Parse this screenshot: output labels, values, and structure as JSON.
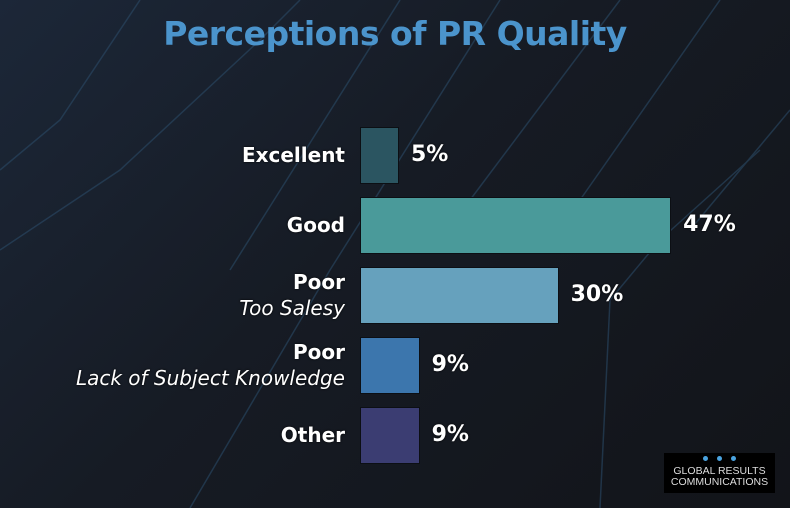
{
  "chart_data": {
    "type": "bar",
    "orientation": "horizontal",
    "title": "Perceptions of PR Quality",
    "categories": [
      {
        "label": "Excellent",
        "sublabel": ""
      },
      {
        "label": "Good",
        "sublabel": ""
      },
      {
        "label": "Poor",
        "sublabel": "Too Salesy"
      },
      {
        "label": "Poor",
        "sublabel": "Lack of Subject Knowledge"
      },
      {
        "label": "Other",
        "sublabel": ""
      }
    ],
    "values": [
      5,
      47,
      30,
      9,
      9
    ],
    "value_labels": [
      "5%",
      "47%",
      "30%",
      "9%",
      "9%"
    ],
    "colors": [
      "#2b5561",
      "#4a9a9a",
      "#66a1bd",
      "#3c76ad",
      "#3b3d72"
    ],
    "xlabel": "",
    "ylabel": "",
    "xlim": [
      0,
      50
    ],
    "grid": false
  },
  "logo": {
    "line1": "GLOBAL RESULTS",
    "line2": "COMMUNICATIONS"
  }
}
